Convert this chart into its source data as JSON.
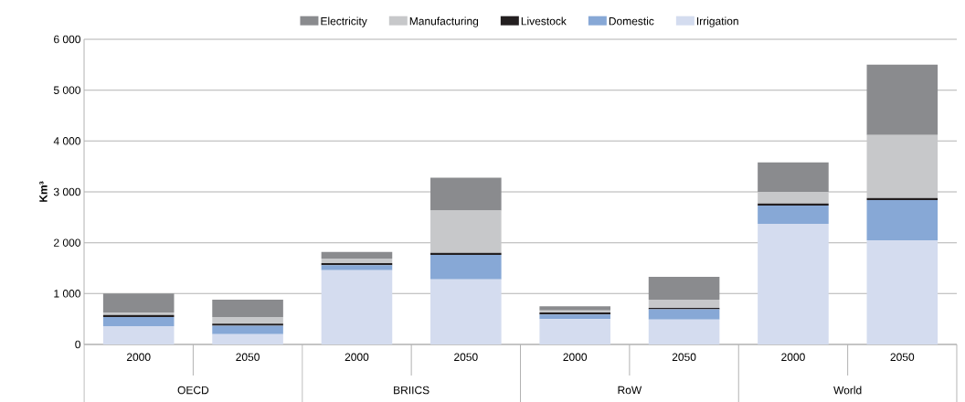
{
  "chart_data": {
    "type": "bar",
    "stacked": true,
    "ylabel": "Km³",
    "categories": [
      "2000",
      "2050",
      "2000",
      "2050",
      "2000",
      "2050",
      "2000",
      "2050"
    ],
    "series": [
      {
        "name": "Irrigation",
        "color": "#d4dcef",
        "values": [
          360,
          200,
          1460,
          1280,
          500,
          490,
          2370,
          2050
        ]
      },
      {
        "name": "Domestic",
        "color": "#87a8d6",
        "values": [
          180,
          170,
          100,
          480,
          90,
          200,
          360,
          790
        ]
      },
      {
        "name": "Livestock",
        "color": "#231f20",
        "values": [
          40,
          40,
          40,
          40,
          40,
          30,
          40,
          40
        ]
      },
      {
        "name": "Manufacturing",
        "color": "#c7c8ca",
        "values": [
          50,
          130,
          90,
          830,
          40,
          160,
          230,
          1240
        ]
      },
      {
        "name": "Electricity",
        "color": "#8a8b8e",
        "values": [
          370,
          340,
          130,
          650,
          80,
          450,
          580,
          1380
        ]
      }
    ],
    "ylim": [
      0,
      6000
    ],
    "yticks": [
      {
        "value": 0,
        "label": "0"
      },
      {
        "value": 1000,
        "label": "1 000"
      },
      {
        "value": 2000,
        "label": "2 000"
      },
      {
        "value": 3000,
        "label": "3 000"
      },
      {
        "value": 4000,
        "label": "4 000"
      },
      {
        "value": 5000,
        "label": "5 000"
      },
      {
        "value": 6000,
        "label": "6 000"
      }
    ],
    "grid": "y",
    "legend": "top",
    "annotations": [
      "OECD",
      "BRIICS",
      "RoW",
      "World"
    ]
  }
}
